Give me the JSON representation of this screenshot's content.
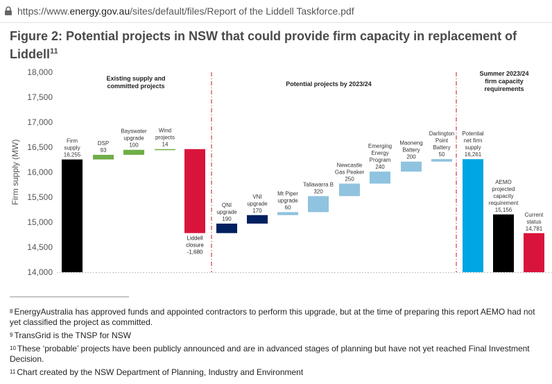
{
  "browser": {
    "url_prefix": "https://www.",
    "url_domain": "energy.gov.au",
    "url_path": "/sites/default/files/Report of the Liddell Taskforce.pdf",
    "lock_icon": "lock-icon"
  },
  "figure": {
    "title": "Figure 2: Potential projects in NSW that could provide firm capacity in replacement of Liddell",
    "title_sup": "11"
  },
  "chart_data": {
    "type": "bar",
    "subtype": "waterfall",
    "ylabel": "Firm supply (MW)",
    "ylim": [
      14000,
      18000
    ],
    "yticks": [
      "14,000",
      "14,500",
      "15,000",
      "15,500",
      "16,000",
      "16,500",
      "17,000",
      "17,500",
      "18,000"
    ],
    "grid": false,
    "sections": [
      {
        "label_lines": [
          "Existing supply and",
          "committed projects"
        ]
      },
      {
        "label_lines": [
          "Potential projects by 2023/24"
        ]
      },
      {
        "label_lines": [
          "Summer 2023/24",
          "firm capacity",
          "requirements"
        ]
      }
    ],
    "bars": [
      {
        "label_lines": [
          "Firm",
          "supply",
          "16,255"
        ],
        "base": 14000,
        "top": 16255,
        "color": "#000000"
      },
      {
        "label_lines": [
          "DSP",
          "93"
        ],
        "base": 16255,
        "top": 16348,
        "color": "#70ad47"
      },
      {
        "label_lines": [
          "Bayswater",
          "upgrade",
          "100"
        ],
        "base": 16348,
        "top": 16448,
        "color": "#70ad47"
      },
      {
        "label_lines": [
          "Wind",
          "projects",
          "14"
        ],
        "base": 16448,
        "top": 16462,
        "color": "#70ad47"
      },
      {
        "label_lines": [
          "Liddell",
          "closure",
          "-1,680"
        ],
        "base": 14782,
        "top": 16462,
        "color": "#d9143c"
      },
      {
        "label_lines": [
          "QNI",
          "upgrade",
          "190"
        ],
        "base": 14782,
        "top": 14972,
        "color": "#002060"
      },
      {
        "label_lines": [
          "VNI",
          "upgrade",
          "170"
        ],
        "base": 14972,
        "top": 15142,
        "color": "#002060"
      },
      {
        "label_lines": [
          "Mt Piper",
          "upgrade",
          "60"
        ],
        "base": 15142,
        "top": 15202,
        "color": "#8fc3df"
      },
      {
        "label_lines": [
          "Tallawarra B",
          "320"
        ],
        "base": 15202,
        "top": 15522,
        "color": "#8fc3df"
      },
      {
        "label_lines": [
          "Newcastle",
          "Gas Peaker",
          "250"
        ],
        "base": 15522,
        "top": 15772,
        "color": "#8fc3df"
      },
      {
        "label_lines": [
          "Emerging",
          "Energy",
          "Program",
          "240"
        ],
        "base": 15772,
        "top": 16012,
        "color": "#8fc3df"
      },
      {
        "label_lines": [
          "Maoneng",
          "Battery",
          "200"
        ],
        "base": 16012,
        "top": 16212,
        "color": "#8fc3df"
      },
      {
        "label_lines": [
          "Darlington",
          "Point",
          "Battery",
          "50"
        ],
        "base": 16212,
        "top": 16262,
        "color": "#8fc3df"
      },
      {
        "label_lines": [
          "Potential",
          "net firm",
          "supply",
          "16,261"
        ],
        "base": 14000,
        "top": 16261,
        "color": "#00a6e3"
      },
      {
        "label_lines": [
          "AEMO",
          "projected",
          "capacity",
          "requirement",
          "15,156"
        ],
        "base": 14000,
        "top": 15156,
        "color": "#000000"
      },
      {
        "label_lines": [
          "Current",
          "status",
          "14,781"
        ],
        "base": 14000,
        "top": 14781,
        "color": "#d9143c"
      }
    ]
  },
  "footnotes": [
    {
      "num": "8",
      "text": "EnergyAustralia has approved funds and appointed contractors to perform this upgrade, but at the time of preparing this report AEMO had not yet classified the project as committed."
    },
    {
      "num": "9",
      "text": "TransGrid is the TNSP for NSW"
    },
    {
      "num": "10",
      "text": "These ‘probable’ projects have been publicly announced and are in advanced stages of planning but have not yet reached Final Investment Decision."
    },
    {
      "num": "11",
      "text": "Chart created by the NSW Department of Planning, Industry and Environment"
    }
  ]
}
